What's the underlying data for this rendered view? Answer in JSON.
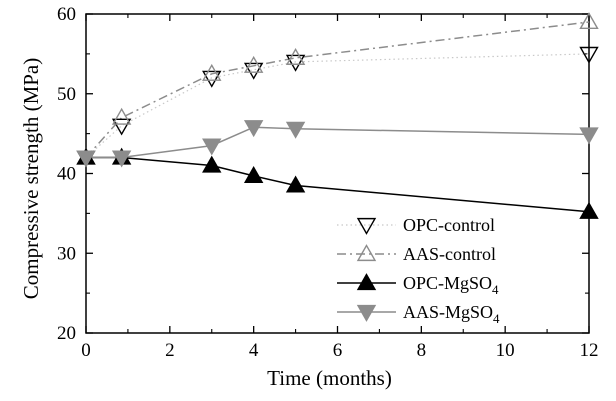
{
  "chart_data": {
    "type": "line",
    "title": "",
    "xlabel": "Time (months)",
    "ylabel": "Compressive strength (MPa)",
    "xlim": [
      0,
      12
    ],
    "ylim": [
      20,
      60
    ],
    "xticks": [
      0,
      2,
      4,
      6,
      8,
      10,
      12
    ],
    "yticks": [
      20,
      30,
      40,
      50,
      60
    ],
    "grid": false,
    "legend_position": "bottom-right",
    "series": [
      {
        "id": "opc-control",
        "name": "OPC-control",
        "marker": "triangle-down-open",
        "line_style": "dotted",
        "color": "#c8c8c8",
        "marker_color": "#000000",
        "x": [
          0,
          0.85,
          3,
          4,
          5,
          12
        ],
        "y": [
          42,
          46,
          52,
          53,
          54,
          55
        ]
      },
      {
        "id": "aas-control",
        "name": "AAS-control",
        "marker": "triangle-up-open",
        "line_style": "dash-dot",
        "color": "#8c8c8c",
        "marker_color": "#8c8c8c",
        "x": [
          0,
          0.85,
          3,
          4,
          5,
          12
        ],
        "y": [
          42,
          47,
          52.5,
          53.5,
          54.5,
          59
        ]
      },
      {
        "id": "opc-mgso4",
        "name": "OPC-MgSO",
        "name_subscript": "4",
        "marker": "triangle-up-filled",
        "line_style": "solid",
        "color": "#000000",
        "marker_color": "#000000",
        "x": [
          0,
          0.85,
          3,
          4,
          5,
          12
        ],
        "y": [
          42,
          42,
          41,
          39.7,
          38.5,
          35.2
        ]
      },
      {
        "id": "aas-mgso4",
        "name": "AAS-MgSO",
        "name_subscript": "4",
        "marker": "triangle-down-filled",
        "line_style": "solid",
        "color": "#8c8c8c",
        "marker_color": "#8c8c8c",
        "x": [
          0,
          0.85,
          3,
          4,
          5,
          12
        ],
        "y": [
          42,
          42,
          43.5,
          45.8,
          45.6,
          44.9
        ]
      }
    ]
  }
}
